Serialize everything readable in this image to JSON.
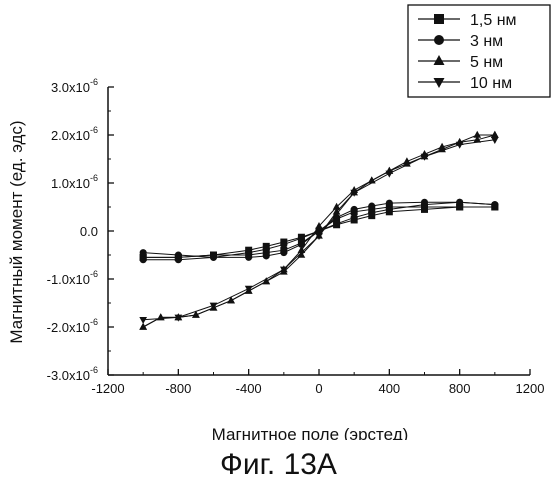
{
  "caption": "Фиг. 13А",
  "chart_data": {
    "type": "scatter",
    "title": "",
    "xlabel": "Магнитное поле (эрстед)",
    "ylabel": "Магнитный момент (ед. эдс)",
    "xlim": [
      -1200,
      1200
    ],
    "ylim": [
      -3e-06,
      3e-06
    ],
    "x_ticks": [
      -1200,
      -800,
      -400,
      0,
      400,
      800,
      1200
    ],
    "x_tick_labels": [
      "-1200",
      "-800",
      "-400",
      "0",
      "400",
      "800",
      "1200"
    ],
    "y_ticks": [
      -3e-06,
      -2e-06,
      -1e-06,
      0,
      1e-06,
      2e-06,
      3e-06
    ],
    "y_tick_labels": [
      {
        "mant": "-3.0x10",
        "exp": "-6"
      },
      {
        "mant": "-2.0x10",
        "exp": "-6"
      },
      {
        "mant": "-1.0x10",
        "exp": "-6"
      },
      {
        "mant": "0.0",
        "exp": ""
      },
      {
        "mant": "1.0x10",
        "exp": "-6"
      },
      {
        "mant": "2.0x10",
        "exp": "-6"
      },
      {
        "mant": "3.0x10",
        "exp": "-6"
      }
    ],
    "grid": false,
    "legend_position": "top-right",
    "series": [
      {
        "name": "1,5 нм",
        "marker": "square",
        "color": "#111111",
        "branches": [
          {
            "x": [
              -1000,
              -800,
              -600,
              -400,
              -300,
              -200,
              -100,
              0,
              100,
              200,
              300,
              400,
              600,
              800,
              1000
            ],
            "y": [
              -5.5e-07,
              -5.5e-07,
              -5e-07,
              -4e-07,
              -3.2e-07,
              -2.3e-07,
              -1.3e-07,
              0,
              2.5e-07,
              4e-07,
              4.5e-07,
              5e-07,
              5e-07,
              5e-07,
              5e-07
            ]
          },
          {
            "x": [
              1000,
              800,
              600,
              400,
              300,
              200,
              100,
              0,
              -100,
              -200,
              -300,
              -400,
              -600,
              -800,
              -1000
            ],
            "y": [
              5e-07,
              5e-07,
              4.5e-07,
              4e-07,
              3.2e-07,
              2.3e-07,
              1.3e-07,
              0,
              -2.5e-07,
              -4e-07,
              -4.5e-07,
              -5e-07,
              -5e-07,
              -5.5e-07,
              -5.5e-07
            ]
          }
        ]
      },
      {
        "name": "3 нм",
        "marker": "circle",
        "color": "#111111",
        "branches": [
          {
            "x": [
              -1000,
              -800,
              -600,
              -400,
              -300,
              -200,
              -100,
              0,
              100,
              200,
              300,
              400,
              600,
              800,
              1000
            ],
            "y": [
              -6e-07,
              -6e-07,
              -5.5e-07,
              -4.5e-07,
              -3.8e-07,
              -2.8e-07,
              -1.5e-07,
              0,
              2.8e-07,
              4.5e-07,
              5.2e-07,
              5.8e-07,
              6e-07,
              6e-07,
              5.5e-07
            ]
          },
          {
            "x": [
              1000,
              800,
              600,
              400,
              300,
              200,
              100,
              0,
              -100,
              -200,
              -300,
              -400,
              -600,
              -800,
              -1000
            ],
            "y": [
              5.5e-07,
              6e-07,
              5.5e-07,
              4.5e-07,
              3.8e-07,
              2.8e-07,
              1.5e-07,
              0,
              -2.8e-07,
              -4.5e-07,
              -5.2e-07,
              -5.5e-07,
              -5.5e-07,
              -5e-07,
              -4.5e-07
            ]
          }
        ]
      },
      {
        "name": "5 нм",
        "marker": "triangle-up",
        "color": "#111111",
        "branches": [
          {
            "x": [
              -1000,
              -900,
              -800,
              -700,
              -600,
              -500,
              -400,
              -300,
              -200,
              -100,
              0,
              100,
              200,
              300,
              400,
              500,
              600,
              700,
              800,
              900,
              1000
            ],
            "y": [
              -2e-06,
              -1.8e-06,
              -1.8e-06,
              -1.75e-06,
              -1.6e-06,
              -1.45e-06,
              -1.25e-06,
              -1.05e-06,
              -8.5e-07,
              -5e-07,
              -1e-07,
              4e-07,
              8e-07,
              1.05e-06,
              1.25e-06,
              1.4e-06,
              1.55e-06,
              1.7e-06,
              1.85e-06,
              2e-06,
              2e-06
            ]
          },
          {
            "x": [
              1000,
              900,
              800,
              700,
              600,
              500,
              400,
              300,
              200,
              100,
              0,
              -100,
              -200,
              -300,
              -400,
              -500,
              -600,
              -700,
              -800,
              -900,
              -1000
            ],
            "y": [
              2e-06,
              1.9e-06,
              1.85e-06,
              1.75e-06,
              1.6e-06,
              1.45e-06,
              1.25e-06,
              1.05e-06,
              8.5e-07,
              5e-07,
              1e-07,
              -4e-07,
              -8e-07,
              -1.05e-06,
              -1.25e-06,
              -1.45e-06,
              -1.6e-06,
              -1.75e-06,
              -1.8e-06,
              -1.8e-06,
              -2e-06
            ]
          }
        ]
      },
      {
        "name": "10 нм",
        "marker": "triangle-down",
        "color": "#111111",
        "branches": [
          {
            "x": [
              -1000,
              -800,
              -600,
              -400,
              -200,
              0,
              200,
              400,
              600,
              800,
              1000
            ],
            "y": [
              -1.85e-06,
              -1.8e-06,
              -1.55e-06,
              -1.2e-06,
              -8e-07,
              -1e-07,
              8e-07,
              1.2e-06,
              1.55e-06,
              1.8e-06,
              1.9e-06
            ]
          }
        ]
      }
    ]
  }
}
